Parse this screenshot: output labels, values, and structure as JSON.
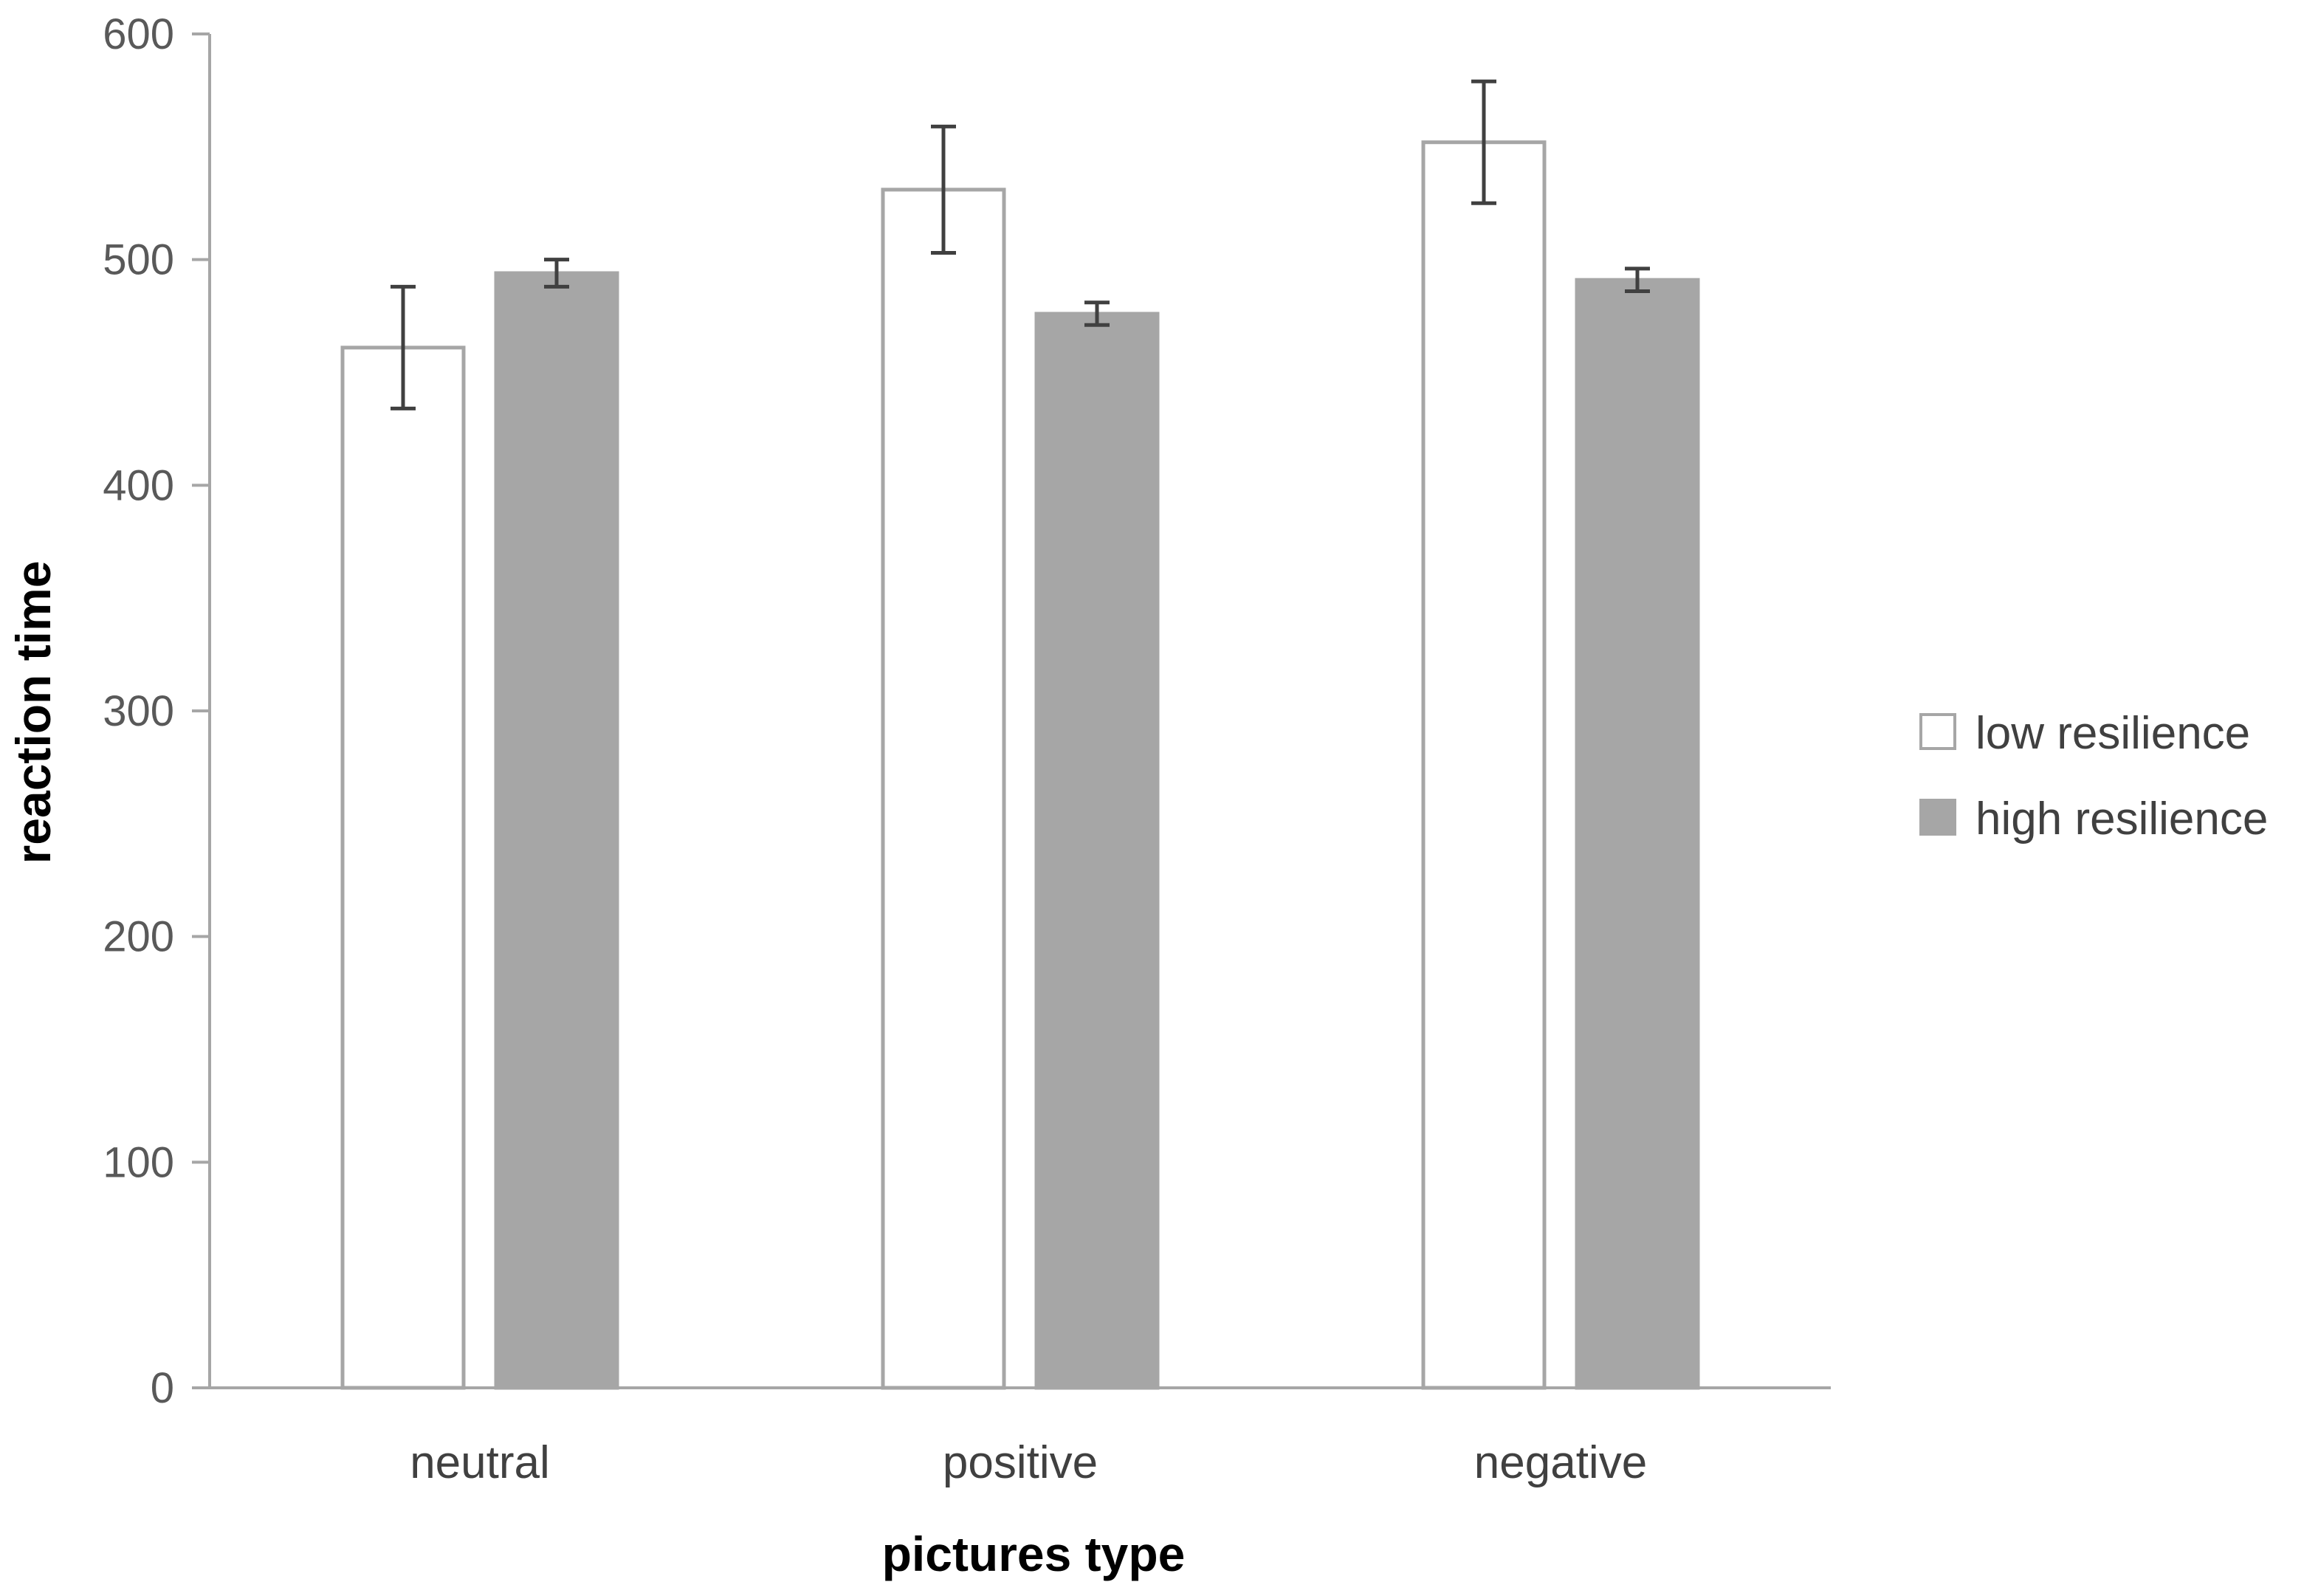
{
  "chart_data": {
    "type": "bar",
    "title": "",
    "xlabel": "pictures type",
    "ylabel": "reaction time",
    "ylim": [
      0,
      600
    ],
    "yticks": [
      0,
      100,
      200,
      300,
      400,
      500,
      600
    ],
    "yticks_labels": [
      "0",
      "100",
      "200",
      "300",
      "400",
      "500",
      "600"
    ],
    "categories": [
      "neutral",
      "positive",
      "negative"
    ],
    "grid": false,
    "legend_position": "right",
    "series": [
      {
        "name": "low resilience",
        "values": [
          461,
          531,
          552
        ],
        "errors": [
          27,
          28,
          27
        ],
        "fill": "#ffffff",
        "stroke": "#a6a6a6"
      },
      {
        "name": "high resilience",
        "values": [
          494,
          476,
          491
        ],
        "errors": [
          6,
          5,
          5
        ],
        "fill": "#a6a6a6",
        "stroke": "#a6a6a6"
      }
    ],
    "colors": {
      "axis": "#a6a6a6",
      "error_bar": "#404040"
    }
  }
}
